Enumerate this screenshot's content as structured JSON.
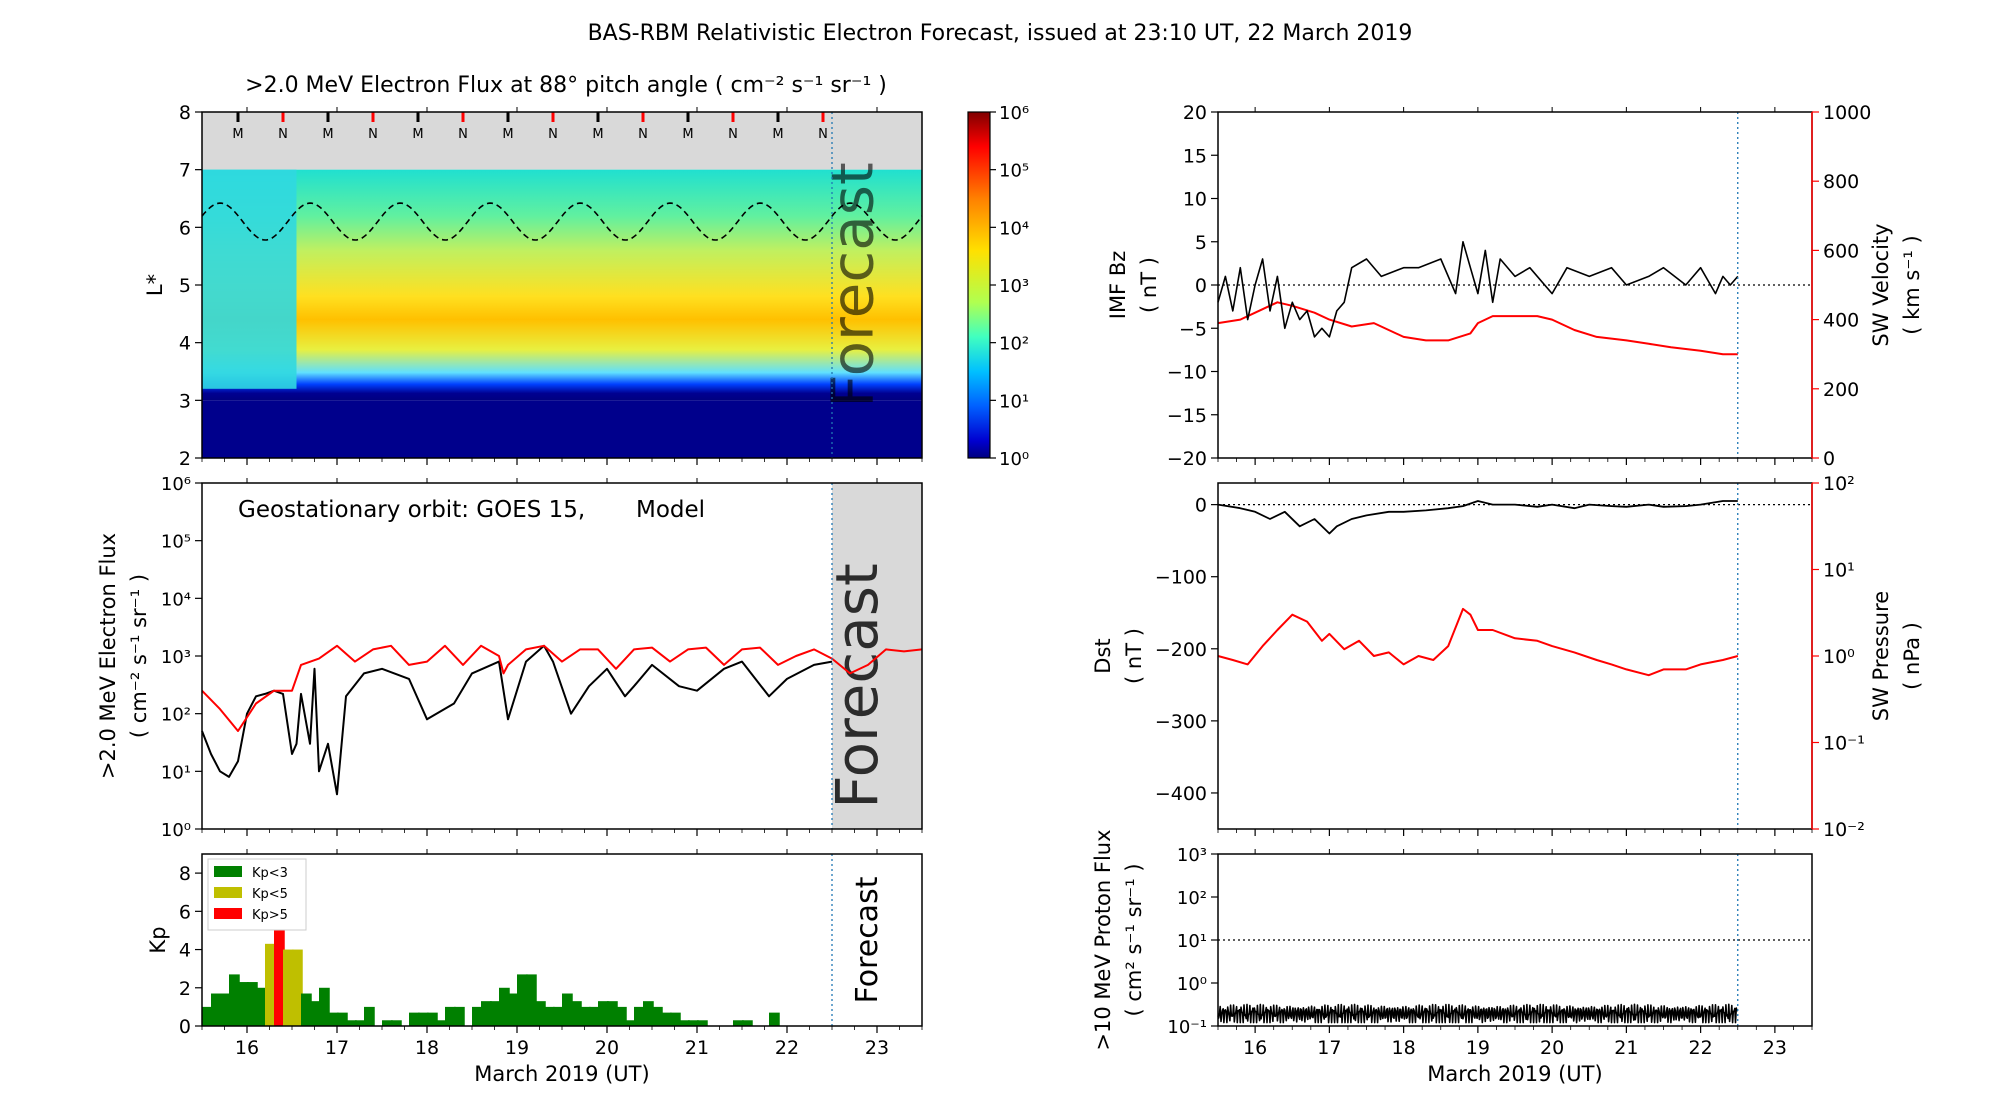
{
  "title": "BAS-RBM Relativistic Electron Forecast, issued at 23:10 UT, 22 March 2019",
  "date_ticks": [
    "16",
    "17",
    "18",
    "19",
    "20",
    "21",
    "22",
    "23"
  ],
  "xlabel": "March 2019 (UT)",
  "forecast_label": "Forecast",
  "colors": {
    "model": "#ff0000",
    "kp_low": "#008000",
    "kp_mid": "#bfbf00",
    "kp_high": "#ff0000",
    "forecast_shade": "#d9d9d9"
  },
  "chart_data": [
    {
      "id": "flux_map",
      "type": "heatmap",
      "title": ">2.0 MeV Electron Flux at 88° pitch angle ( cm⁻² s⁻¹ sr⁻¹ )",
      "ylabel": "L*",
      "ylim": [
        2,
        8
      ],
      "yticks": [
        "2",
        "3",
        "4",
        "5",
        "6",
        "7",
        "8"
      ],
      "xlim": [
        "2019-03-15T12:00",
        "2019-03-23T12:00"
      ],
      "colorbar": {
        "scale": "log",
        "range": [
          1,
          1000000
        ],
        "ticks": [
          "10⁰",
          "10¹",
          "10²",
          "10³",
          "10⁴",
          "10⁵",
          "10⁶"
        ]
      },
      "markers": [
        "M",
        "N",
        "M",
        "N",
        "M",
        "N",
        "M",
        "N",
        "M",
        "N",
        "M",
        "N",
        "M",
        "N"
      ],
      "forecast_start": "2019-03-22T12:00"
    },
    {
      "id": "geo_flux",
      "type": "line",
      "ylabel": ">2.0 MeV Electron Flux",
      "yunits": "( cm⁻² s⁻¹ sr⁻¹ )",
      "yscale": "log",
      "ylim": [
        1,
        1000000
      ],
      "yticks": [
        "10⁰",
        "10¹",
        "10²",
        "10³",
        "10⁴",
        "10⁵",
        "10⁶"
      ],
      "legend_text": "Geostationary orbit:   GOES 15,",
      "legend_model": "Model",
      "series": [
        {
          "name": "GOES 15",
          "color": "#000000",
          "x": [
            15.5,
            15.6,
            15.7,
            15.8,
            15.9,
            16.0,
            16.1,
            16.2,
            16.3,
            16.4,
            16.5,
            16.55,
            16.6,
            16.7,
            16.75,
            16.8,
            16.9,
            17.0,
            17.1,
            17.3,
            17.5,
            17.8,
            18.0,
            18.3,
            18.5,
            18.8,
            18.9,
            19.1,
            19.3,
            19.4,
            19.6,
            19.8,
            20.0,
            20.2,
            20.3,
            20.5,
            20.8,
            21.0,
            21.3,
            21.5,
            21.8,
            22.0,
            22.3,
            22.5
          ],
          "y": [
            50,
            20,
            10,
            8,
            15,
            100,
            200,
            220,
            250,
            220,
            20,
            30,
            220,
            30,
            600,
            10,
            30,
            4,
            200,
            500,
            600,
            400,
            80,
            150,
            500,
            800,
            80,
            800,
            1500,
            800,
            100,
            300,
            600,
            200,
            300,
            700,
            300,
            250,
            600,
            800,
            200,
            400,
            700,
            800
          ]
        },
        {
          "name": "Model",
          "color": "#ff0000",
          "x": [
            15.5,
            15.7,
            15.9,
            16.1,
            16.3,
            16.5,
            16.6,
            16.8,
            17.0,
            17.2,
            17.4,
            17.6,
            17.8,
            18.0,
            18.2,
            18.4,
            18.6,
            18.8,
            18.85,
            18.9,
            19.1,
            19.3,
            19.5,
            19.7,
            19.9,
            20.1,
            20.3,
            20.5,
            20.7,
            20.9,
            21.1,
            21.3,
            21.5,
            21.7,
            21.9,
            22.1,
            22.3,
            22.5,
            22.7,
            22.9,
            23.1,
            23.3,
            23.5
          ],
          "y": [
            250,
            120,
            50,
            150,
            250,
            250,
            700,
            900,
            1500,
            800,
            1300,
            1500,
            700,
            800,
            1500,
            700,
            1500,
            1000,
            500,
            700,
            1300,
            1500,
            800,
            1300,
            1300,
            600,
            1300,
            1400,
            800,
            1300,
            1400,
            700,
            1300,
            1400,
            700,
            1000,
            1300,
            900,
            500,
            700,
            1300,
            1200,
            1300
          ]
        }
      ],
      "forecast_start": "2019-03-22T12:00"
    },
    {
      "id": "kp",
      "type": "bar",
      "ylabel": "Kp",
      "ylim": [
        0,
        9
      ],
      "yticks": [
        "0",
        "2",
        "4",
        "6",
        "8"
      ],
      "legend": [
        "Kp<3",
        "Kp<5",
        "Kp>5"
      ],
      "bar_width_days": 0.125,
      "x": [
        15.5,
        15.6,
        15.7,
        15.8,
        15.9,
        16.0,
        16.1,
        16.2,
        16.3,
        16.4,
        16.5,
        16.6,
        16.7,
        16.8,
        16.9,
        17.0,
        17.1,
        17.2,
        17.3,
        17.5,
        17.6,
        17.8,
        17.9,
        18.0,
        18.1,
        18.2,
        18.3,
        18.5,
        18.6,
        18.7,
        18.8,
        18.9,
        19.0,
        19.1,
        19.2,
        19.3,
        19.4,
        19.5,
        19.6,
        19.7,
        19.8,
        19.9,
        20.0,
        20.1,
        20.2,
        20.3,
        20.4,
        20.5,
        20.6,
        20.7,
        20.8,
        20.9,
        21.0,
        21.4,
        21.5,
        21.8
      ],
      "values": [
        1.0,
        1.7,
        1.7,
        2.7,
        2.3,
        2.3,
        2.0,
        4.3,
        5.0,
        4.0,
        4.0,
        1.7,
        1.3,
        2.0,
        0.7,
        0.7,
        0.3,
        0.3,
        1.0,
        0.3,
        0.3,
        0.7,
        0.7,
        0.7,
        0.3,
        1.0,
        1.0,
        1.0,
        1.3,
        1.3,
        2.0,
        1.7,
        2.7,
        2.7,
        1.3,
        1.0,
        1.0,
        1.7,
        1.3,
        1.0,
        1.0,
        1.3,
        1.3,
        1.0,
        0.3,
        1.0,
        1.3,
        1.0,
        0.7,
        0.7,
        0.3,
        0.3,
        0.3,
        0.3,
        0.3,
        0.7
      ],
      "forecast_start": "2019-03-22T12:00"
    },
    {
      "id": "imf_sw",
      "type": "line",
      "ylabel": "IMF Bz",
      "yunits": "( nT )",
      "ylim": [
        -20,
        20
      ],
      "yticks": [
        "20",
        "15",
        "10",
        "5",
        "0",
        "−5",
        "−10",
        "−15",
        "−20"
      ],
      "y2label": "SW Velocity",
      "y2units": "( km s⁻¹ )",
      "y2lim": [
        0,
        1000
      ],
      "y2ticks": [
        "0",
        "200",
        "400",
        "600",
        "800",
        "1000"
      ],
      "series": [
        {
          "name": "IMF Bz",
          "axis": "left",
          "color": "#000000",
          "x": [
            15.5,
            15.6,
            15.7,
            15.8,
            15.9,
            16.0,
            16.1,
            16.2,
            16.3,
            16.4,
            16.5,
            16.6,
            16.7,
            16.8,
            16.9,
            17.0,
            17.1,
            17.2,
            17.3,
            17.5,
            17.7,
            18.0,
            18.2,
            18.5,
            18.7,
            18.8,
            18.9,
            19.0,
            19.1,
            19.2,
            19.3,
            19.5,
            19.7,
            20.0,
            20.2,
            20.5,
            20.8,
            21.0,
            21.3,
            21.5,
            21.8,
            22.0,
            22.2,
            22.3,
            22.4,
            22.5
          ],
          "y": [
            -2,
            1,
            -3,
            2,
            -4,
            0,
            3,
            -3,
            1,
            -5,
            -2,
            -4,
            -3,
            -6,
            -5,
            -6,
            -3,
            -2,
            2,
            3,
            1,
            2,
            2,
            3,
            -1,
            5,
            2,
            -1,
            4,
            -2,
            3,
            1,
            2,
            -1,
            2,
            1,
            2,
            0,
            1,
            2,
            0,
            2,
            -1,
            1,
            0,
            1
          ]
        },
        {
          "name": "SW Velocity",
          "axis": "right",
          "color": "#ff0000",
          "x": [
            15.5,
            15.8,
            16.0,
            16.3,
            16.5,
            16.8,
            17.0,
            17.3,
            17.6,
            18.0,
            18.3,
            18.6,
            18.9,
            19.0,
            19.2,
            19.5,
            19.8,
            20.0,
            20.3,
            20.6,
            21.0,
            21.3,
            21.6,
            22.0,
            22.3,
            22.5
          ],
          "y": [
            390,
            400,
            420,
            450,
            440,
            420,
            400,
            380,
            390,
            350,
            340,
            340,
            360,
            390,
            410,
            410,
            410,
            400,
            370,
            350,
            340,
            330,
            320,
            310,
            300,
            300
          ]
        }
      ],
      "forecast_start": "2019-03-22T12:00"
    },
    {
      "id": "dst_pressure",
      "type": "line",
      "ylabel": "Dst",
      "yunits": "( nT )",
      "ylim": [
        -450,
        30
      ],
      "yticks": [
        "0",
        "−100",
        "−200",
        "−300",
        "−400"
      ],
      "y2label": "SW Pressure",
      "y2units": "( nPa )",
      "y2scale": "log",
      "y2lim": [
        0.01,
        100
      ],
      "y2ticks": [
        "10⁻²",
        "10⁻¹",
        "10⁰",
        "10¹",
        "10²"
      ],
      "series": [
        {
          "name": "Dst",
          "axis": "left",
          "color": "#000000",
          "x": [
            15.5,
            15.8,
            16.0,
            16.2,
            16.4,
            16.6,
            16.8,
            17.0,
            17.1,
            17.3,
            17.5,
            17.8,
            18.0,
            18.3,
            18.6,
            18.8,
            19.0,
            19.2,
            19.5,
            19.8,
            20.0,
            20.3,
            20.5,
            20.8,
            21.0,
            21.3,
            21.5,
            21.8,
            22.0,
            22.3,
            22.5
          ],
          "y": [
            0,
            -5,
            -10,
            -20,
            -10,
            -30,
            -20,
            -40,
            -30,
            -20,
            -15,
            -10,
            -10,
            -8,
            -5,
            -2,
            5,
            0,
            0,
            -3,
            0,
            -5,
            0,
            -2,
            -3,
            0,
            -3,
            -2,
            0,
            5,
            5
          ]
        },
        {
          "name": "SW Pressure",
          "axis": "right",
          "color": "#ff0000",
          "x": [
            15.5,
            15.7,
            15.9,
            16.1,
            16.3,
            16.5,
            16.7,
            16.9,
            17.0,
            17.2,
            17.4,
            17.6,
            17.8,
            18.0,
            18.2,
            18.4,
            18.6,
            18.8,
            18.9,
            19.0,
            19.2,
            19.5,
            19.8,
            20.0,
            20.3,
            20.6,
            20.8,
            21.0,
            21.3,
            21.5,
            21.8,
            22.0,
            22.3,
            22.5
          ],
          "y": [
            1.0,
            0.9,
            0.8,
            1.3,
            2.0,
            3.0,
            2.5,
            1.5,
            1.8,
            1.2,
            1.5,
            1.0,
            1.1,
            0.8,
            1.0,
            0.9,
            1.3,
            3.5,
            3.0,
            2.0,
            2.0,
            1.6,
            1.5,
            1.3,
            1.1,
            0.9,
            0.8,
            0.7,
            0.6,
            0.7,
            0.7,
            0.8,
            0.9,
            1.0
          ]
        }
      ],
      "forecast_start": "2019-03-22T12:00"
    },
    {
      "id": "proton_flux",
      "type": "line",
      "ylabel": ">10 MeV Proton Flux",
      "yunits": "( cm² s⁻¹ sr⁻¹ )",
      "yscale": "log",
      "ylim": [
        0.1,
        1000
      ],
      "yticks": [
        "10⁻¹",
        "10⁰",
        "10¹",
        "10²",
        "10³"
      ],
      "threshold": 10,
      "series": [
        {
          "name": ">10 MeV Proton Flux",
          "color": "#000000",
          "x": [
            15.5,
            16.0,
            16.5,
            17.0,
            17.5,
            18.0,
            18.5,
            19.0,
            19.5,
            20.0,
            20.5,
            21.0,
            21.5,
            22.0,
            22.5
          ],
          "y": [
            0.2,
            0.2,
            0.2,
            0.21,
            0.2,
            0.2,
            0.21,
            0.2,
            0.2,
            0.21,
            0.2,
            0.2,
            0.21,
            0.2,
            0.2
          ]
        }
      ],
      "forecast_start": "2019-03-22T12:00"
    }
  ]
}
